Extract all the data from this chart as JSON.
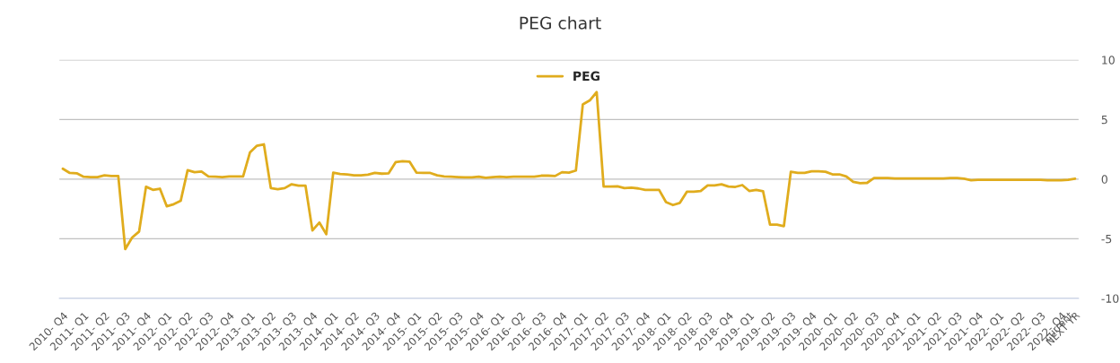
{
  "chart_data": {
    "type": "line",
    "title": "PEG chart",
    "categories": [
      "2010- Q4",
      null,
      null,
      "2011- Q1",
      null,
      null,
      "2011- Q2",
      null,
      null,
      "2011- Q3",
      null,
      null,
      "2011- Q4",
      null,
      null,
      "2012- Q1",
      null,
      null,
      "2012- Q2",
      null,
      null,
      "2012- Q3",
      null,
      null,
      "2012- Q4",
      null,
      null,
      "2013- Q1",
      null,
      null,
      "2013- Q2",
      null,
      null,
      "2013- Q3",
      null,
      null,
      "2013- Q4",
      null,
      null,
      "2014- Q1",
      null,
      null,
      "2014- Q2",
      null,
      null,
      "2014- Q3",
      null,
      null,
      "2014- Q4",
      null,
      null,
      "2015- Q1",
      null,
      null,
      "2015- Q2",
      null,
      null,
      "2015- Q3",
      null,
      null,
      "2015- Q4",
      null,
      null,
      "2016- Q1",
      null,
      null,
      "2016- Q2",
      null,
      null,
      "2016- Q3",
      null,
      null,
      "2016- Q4",
      null,
      null,
      "2017- Q1",
      null,
      null,
      "2017- Q2",
      null,
      null,
      "2017- Q3",
      null,
      null,
      "2017- Q4",
      null,
      null,
      "2018- Q1",
      null,
      null,
      "2018- Q2",
      null,
      null,
      "2018- Q3",
      null,
      null,
      "2018- Q4",
      null,
      null,
      "2019- Q1",
      null,
      null,
      "2019- Q2",
      null,
      null,
      "2019- Q3",
      null,
      null,
      "2019- Q4",
      null,
      null,
      "2020- Q1",
      null,
      null,
      "2020- Q2",
      null,
      null,
      "2020- Q3",
      null,
      null,
      "2020- Q4",
      null,
      null,
      "2021- Q1",
      null,
      null,
      "2021- Q2",
      null,
      null,
      "2021- Q3",
      null,
      null,
      "2021- Q4",
      null,
      null,
      "2022- Q1",
      null,
      null,
      "2022- Q2",
      null,
      null,
      "2022- Q3",
      null,
      null,
      "2022- Q4",
      "current",
      "NEXT YR"
    ],
    "series": [
      {
        "name": "PEG",
        "color": "#e0ac1d",
        "values": [
          0.87,
          0.52,
          0.49,
          0.2,
          0.17,
          0.17,
          0.32,
          0.26,
          0.26,
          -5.87,
          -4.9,
          -4.4,
          -0.64,
          -0.9,
          -0.8,
          -2.28,
          -2.1,
          -1.82,
          0.75,
          0.58,
          0.64,
          0.23,
          0.2,
          0.17,
          0.23,
          0.23,
          0.23,
          2.25,
          2.8,
          2.92,
          -0.75,
          -0.84,
          -0.75,
          -0.43,
          -0.55,
          -0.55,
          -4.3,
          -3.64,
          -4.62,
          0.55,
          0.43,
          0.4,
          0.32,
          0.32,
          0.38,
          0.52,
          0.46,
          0.49,
          1.42,
          1.5,
          1.47,
          0.55,
          0.52,
          0.52,
          0.32,
          0.23,
          0.2,
          0.17,
          0.15,
          0.15,
          0.2,
          0.12,
          0.17,
          0.2,
          0.17,
          0.2,
          0.2,
          0.2,
          0.2,
          0.29,
          0.29,
          0.26,
          0.58,
          0.55,
          0.72,
          6.27,
          6.6,
          7.3,
          -0.62,
          -0.62,
          -0.6,
          -0.75,
          -0.72,
          -0.78,
          -0.9,
          -0.9,
          -0.9,
          -1.93,
          -2.17,
          -1.99,
          -1.06,
          -1.06,
          -0.99,
          -0.53,
          -0.53,
          -0.43,
          -0.62,
          -0.65,
          -0.5,
          -0.99,
          -0.9,
          -1.02,
          -3.82,
          -3.82,
          -3.94,
          0.62,
          0.53,
          0.53,
          0.65,
          0.65,
          0.62,
          0.4,
          0.4,
          0.22,
          -0.22,
          -0.34,
          -0.31,
          0.09,
          0.09,
          0.09,
          0.06,
          0.05,
          0.05,
          0.05,
          0.05,
          0.05,
          0.05,
          0.05,
          0.09,
          0.09,
          0.03,
          -0.09,
          -0.06,
          -0.06,
          -0.06,
          -0.06,
          -0.05,
          -0.05,
          -0.05,
          -0.05,
          -0.05,
          -0.06,
          -0.09,
          -0.09,
          -0.09,
          -0.06,
          0.03
        ]
      }
    ],
    "ylim": [
      -10,
      10
    ],
    "yticks": [
      -10,
      -5,
      0,
      5,
      10
    ],
    "grid": "y",
    "legend": "top",
    "line_style": "solid"
  }
}
